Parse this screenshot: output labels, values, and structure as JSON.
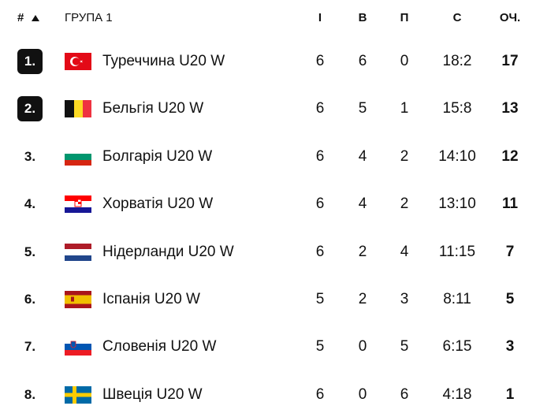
{
  "header": {
    "rank": "#",
    "group": "ГРУПА 1",
    "played": "І",
    "won": "В",
    "lost": "П",
    "score": "С",
    "points": "ОЧ."
  },
  "table": {
    "rows": [
      [
        "1.",
        "Туреччина U20 W",
        6,
        6,
        0,
        "18:2",
        17
      ],
      [
        "2.",
        "Бельгія U20 W",
        6,
        5,
        1,
        "15:8",
        13
      ],
      [
        "3.",
        "Болгарія U20 W",
        6,
        4,
        2,
        "14:10",
        12
      ],
      [
        "4.",
        "Хорватія U20 W",
        6,
        4,
        2,
        "13:10",
        11
      ],
      [
        "5.",
        "Нідерланди U20 W",
        6,
        2,
        4,
        "11:15",
        7
      ],
      [
        "6.",
        "Іспанія U20 W",
        5,
        2,
        3,
        "8:11",
        5
      ],
      [
        "7.",
        "Словенія U20 W",
        5,
        0,
        5,
        "6:15",
        3
      ],
      [
        "8.",
        "Швеція U20 W",
        6,
        0,
        6,
        "4:18",
        1
      ]
    ]
  }
}
